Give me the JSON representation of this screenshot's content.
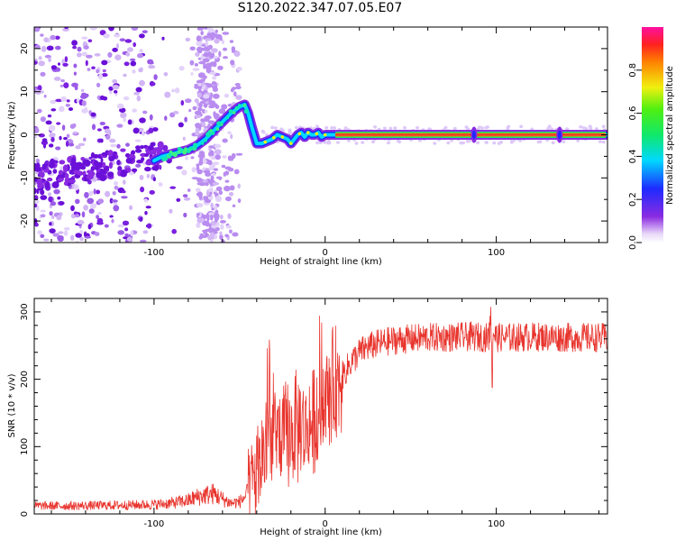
{
  "title": "S120.2022.347.07.05.E07",
  "colors": {
    "snr_line": "#e8352e",
    "spectrogram_dots": "#8a2be2",
    "ridge_core": "#e8352e"
  },
  "chart_data": [
    {
      "type": "heatmap",
      "title": "",
      "xlabel": "Height of straight line (km)",
      "ylabel": "Frequency (Hz)",
      "xlim": [
        -170,
        165
      ],
      "ylim": [
        -25,
        25
      ],
      "xticks": [
        -100,
        0,
        100
      ],
      "yticks": [
        -20,
        -10,
        0,
        10,
        20
      ],
      "colorbar": {
        "label": "Normalized spectral amplitude",
        "range": [
          0,
          1
        ],
        "ticks": [
          "0.0",
          "0.2",
          "0.4",
          "0.6",
          "0.8"
        ],
        "colormap": "rainbow (violet-blue-cyan-green-yellow-red-magenta)"
      },
      "ridge": {
        "x": [
          -100,
          -95,
          -90,
          -85,
          -80,
          -75,
          -70,
          -65,
          -60,
          -55,
          -50,
          -47,
          -45,
          -43,
          -40,
          -37,
          -34,
          -31,
          -28,
          -25,
          -22,
          -20,
          -18,
          -16,
          -14,
          -12,
          -10,
          -8,
          -6,
          -4,
          -2,
          0,
          2,
          4,
          6,
          165
        ],
        "y": [
          -6,
          -5,
          -4.5,
          -4,
          -3.5,
          -2.5,
          -1,
          1,
          3,
          5,
          6.5,
          7,
          5,
          2,
          -2,
          -2,
          -1.5,
          -1,
          0,
          -0.5,
          -1,
          -2,
          -1,
          0,
          0.5,
          -0.5,
          0.5,
          0,
          0,
          0.5,
          -0.5,
          0,
          0,
          0,
          0,
          0
        ]
      },
      "spikes_x": [
        87,
        137
      ]
    },
    {
      "type": "line",
      "title": "",
      "xlabel": "Height of straight line (km)",
      "ylabel": "SNR (10 * v/v)",
      "xlim": [
        -170,
        165
      ],
      "ylim": [
        0,
        320
      ],
      "xticks": [
        -100,
        0,
        100
      ],
      "yticks": [
        0,
        100,
        200,
        300
      ],
      "series": [
        {
          "x": [
            -170,
            -150,
            -120,
            -100,
            -90,
            -80,
            -75,
            -70,
            -65,
            -60,
            -55,
            -50,
            -45,
            -40,
            -35,
            -30,
            -25,
            -20,
            -15,
            -10,
            -5,
            0,
            5,
            10,
            15,
            20,
            25,
            30,
            40,
            50,
            60,
            70,
            80,
            90,
            95,
            98,
            100,
            110,
            120,
            130,
            140,
            150,
            165
          ],
          "y": [
            12,
            12,
            13,
            14,
            16,
            20,
            25,
            28,
            30,
            22,
            16,
            18,
            30,
            60,
            100,
            125,
            110,
            120,
            130,
            125,
            150,
            170,
            190,
            205,
            225,
            240,
            248,
            252,
            258,
            260,
            262,
            262,
            263,
            263,
            262,
            270,
            262,
            262,
            263,
            263,
            262,
            262,
            262
          ]
        }
      ],
      "annotations": [
        {
          "x": -28,
          "y": 265,
          "text": ""
        }
      ]
    }
  ]
}
